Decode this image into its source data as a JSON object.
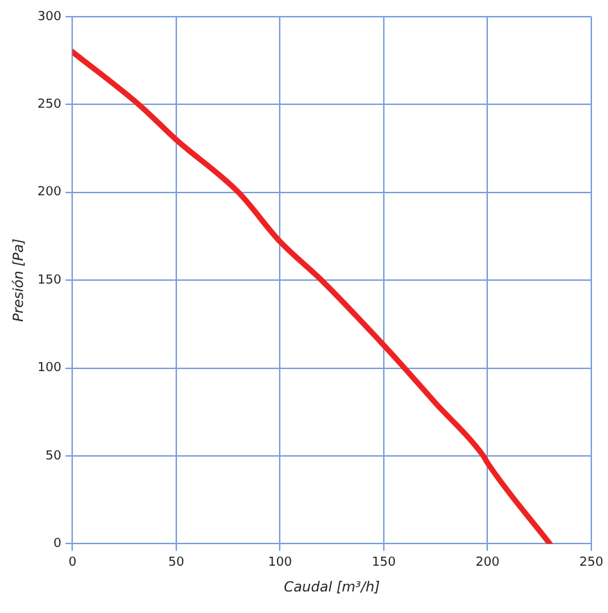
{
  "chart_data": {
    "type": "line",
    "xlabel": "Caudal [m³/h]",
    "ylabel": "Presión [Pa]",
    "series": [
      {
        "color": "#ee2222",
        "x": [
          0,
          32,
          50,
          80,
          100,
          120,
          150,
          160,
          175,
          198,
          200,
          230
        ],
        "values": [
          280,
          250,
          230,
          200,
          172,
          150,
          113,
          100,
          80,
          50,
          46,
          0
        ]
      }
    ],
    "xlim": [
      0,
      250
    ],
    "xticks": [
      0,
      50,
      100,
      150,
      200,
      250
    ],
    "ylim": [
      0,
      300
    ],
    "yticks": [
      0,
      50,
      100,
      150,
      200,
      250,
      300
    ],
    "grid": true,
    "legend": false,
    "marker": "none",
    "line_style": "solid"
  }
}
